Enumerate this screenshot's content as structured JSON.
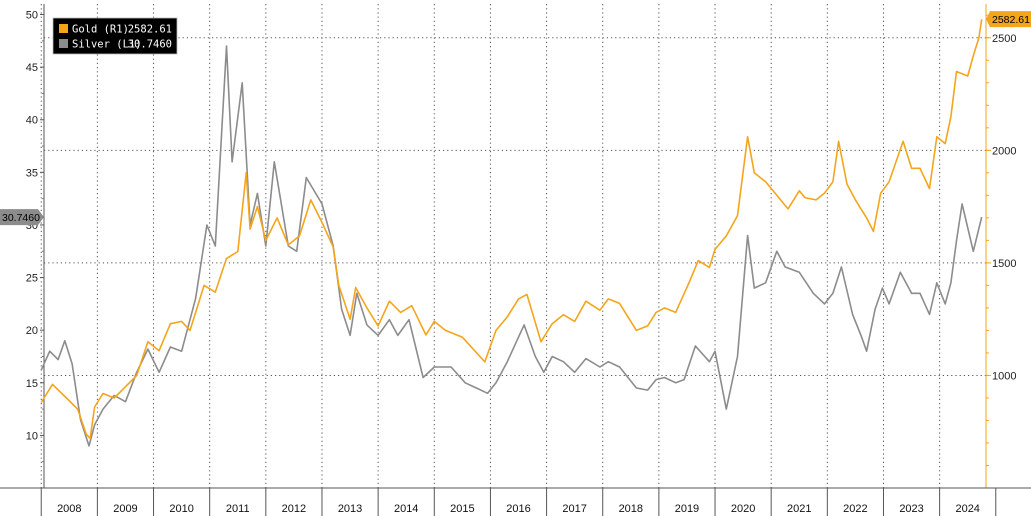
{
  "chart_data": {
    "type": "line",
    "title": "",
    "xlabel": "",
    "x_tick_labels": [
      "2008",
      "2009",
      "2010",
      "2011",
      "2012",
      "2013",
      "2014",
      "2015",
      "2016",
      "2017",
      "2018",
      "2019",
      "2020",
      "2021",
      "2022",
      "2023",
      "2024"
    ],
    "xlim": [
      2007.8,
      2024.9
    ],
    "left_axis": {
      "ticks": [
        "10",
        "15",
        "20",
        "25",
        "30",
        "35",
        "40",
        "45",
        "50"
      ],
      "ylim": [
        5,
        51
      ]
    },
    "right_axis": {
      "ticks": [
        "1000",
        "1500",
        "2000",
        "2500"
      ],
      "ylim": [
        500,
        2650
      ]
    },
    "grid": true,
    "legend": {
      "placement": "top-left"
    },
    "series": [
      {
        "name": "Gold (R1)",
        "axis": "right",
        "color": "#F4A51C",
        "last_value": "2582.61",
        "points": [
          [
            2008.0,
            880
          ],
          [
            2008.2,
            960
          ],
          [
            2008.45,
            900
          ],
          [
            2008.65,
            850
          ],
          [
            2008.8,
            740
          ],
          [
            2008.87,
            720
          ],
          [
            2008.95,
            860
          ],
          [
            2009.1,
            920
          ],
          [
            2009.3,
            900
          ],
          [
            2009.5,
            950
          ],
          [
            2009.7,
            1000
          ],
          [
            2009.9,
            1150
          ],
          [
            2010.1,
            1110
          ],
          [
            2010.3,
            1230
          ],
          [
            2010.5,
            1240
          ],
          [
            2010.65,
            1200
          ],
          [
            2010.9,
            1400
          ],
          [
            2011.1,
            1370
          ],
          [
            2011.3,
            1520
          ],
          [
            2011.5,
            1550
          ],
          [
            2011.65,
            1900
          ],
          [
            2011.72,
            1650
          ],
          [
            2011.85,
            1750
          ],
          [
            2012.0,
            1600
          ],
          [
            2012.2,
            1700
          ],
          [
            2012.4,
            1580
          ],
          [
            2012.6,
            1620
          ],
          [
            2012.8,
            1780
          ],
          [
            2013.0,
            1680
          ],
          [
            2013.2,
            1570
          ],
          [
            2013.3,
            1400
          ],
          [
            2013.5,
            1250
          ],
          [
            2013.6,
            1390
          ],
          [
            2013.8,
            1300
          ],
          [
            2014.0,
            1220
          ],
          [
            2014.2,
            1330
          ],
          [
            2014.4,
            1280
          ],
          [
            2014.6,
            1310
          ],
          [
            2014.85,
            1180
          ],
          [
            2015.0,
            1240
          ],
          [
            2015.2,
            1200
          ],
          [
            2015.5,
            1170
          ],
          [
            2015.9,
            1060
          ],
          [
            2016.1,
            1200
          ],
          [
            2016.3,
            1260
          ],
          [
            2016.5,
            1340
          ],
          [
            2016.65,
            1360
          ],
          [
            2016.9,
            1150
          ],
          [
            2017.1,
            1230
          ],
          [
            2017.3,
            1270
          ],
          [
            2017.5,
            1240
          ],
          [
            2017.7,
            1330
          ],
          [
            2017.95,
            1290
          ],
          [
            2018.1,
            1340
          ],
          [
            2018.3,
            1320
          ],
          [
            2018.6,
            1200
          ],
          [
            2018.8,
            1220
          ],
          [
            2018.95,
            1280
          ],
          [
            2019.1,
            1300
          ],
          [
            2019.3,
            1280
          ],
          [
            2019.55,
            1420
          ],
          [
            2019.7,
            1510
          ],
          [
            2019.9,
            1480
          ],
          [
            2020.0,
            1560
          ],
          [
            2020.2,
            1620
          ],
          [
            2020.4,
            1710
          ],
          [
            2020.58,
            2060
          ],
          [
            2020.7,
            1900
          ],
          [
            2020.9,
            1860
          ],
          [
            2021.1,
            1800
          ],
          [
            2021.3,
            1740
          ],
          [
            2021.5,
            1820
          ],
          [
            2021.6,
            1790
          ],
          [
            2021.8,
            1780
          ],
          [
            2021.95,
            1810
          ],
          [
            2022.1,
            1860
          ],
          [
            2022.2,
            2040
          ],
          [
            2022.35,
            1850
          ],
          [
            2022.5,
            1780
          ],
          [
            2022.7,
            1700
          ],
          [
            2022.82,
            1640
          ],
          [
            2022.95,
            1810
          ],
          [
            2023.1,
            1860
          ],
          [
            2023.35,
            2040
          ],
          [
            2023.5,
            1920
          ],
          [
            2023.65,
            1920
          ],
          [
            2023.82,
            1830
          ],
          [
            2023.95,
            2060
          ],
          [
            2024.1,
            2030
          ],
          [
            2024.2,
            2150
          ],
          [
            2024.3,
            2350
          ],
          [
            2024.5,
            2330
          ],
          [
            2024.6,
            2420
          ],
          [
            2024.7,
            2500
          ],
          [
            2024.75,
            2582.61
          ]
        ]
      },
      {
        "name": "Silver (L1)",
        "axis": "left",
        "color": "#8C8C8C",
        "last_value": "30.7460",
        "points": [
          [
            2008.0,
            16.2
          ],
          [
            2008.15,
            18.0
          ],
          [
            2008.3,
            17.2
          ],
          [
            2008.42,
            19.0
          ],
          [
            2008.55,
            16.8
          ],
          [
            2008.7,
            11.5
          ],
          [
            2008.85,
            9.0
          ],
          [
            2008.95,
            11.0
          ],
          [
            2009.1,
            12.5
          ],
          [
            2009.3,
            13.8
          ],
          [
            2009.5,
            13.2
          ],
          [
            2009.7,
            16.0
          ],
          [
            2009.9,
            18.2
          ],
          [
            2010.1,
            16.0
          ],
          [
            2010.3,
            18.4
          ],
          [
            2010.5,
            18.0
          ],
          [
            2010.75,
            23.0
          ],
          [
            2010.95,
            30.0
          ],
          [
            2011.1,
            28.0
          ],
          [
            2011.3,
            47.0
          ],
          [
            2011.4,
            36.0
          ],
          [
            2011.58,
            43.5
          ],
          [
            2011.72,
            30.0
          ],
          [
            2011.85,
            33.0
          ],
          [
            2012.0,
            28.0
          ],
          [
            2012.15,
            36.0
          ],
          [
            2012.4,
            28.0
          ],
          [
            2012.55,
            27.5
          ],
          [
            2012.72,
            34.5
          ],
          [
            2013.0,
            32.0
          ],
          [
            2013.2,
            28.0
          ],
          [
            2013.35,
            22.0
          ],
          [
            2013.5,
            19.5
          ],
          [
            2013.62,
            23.5
          ],
          [
            2013.8,
            20.5
          ],
          [
            2014.0,
            19.5
          ],
          [
            2014.2,
            21.0
          ],
          [
            2014.35,
            19.5
          ],
          [
            2014.55,
            21.0
          ],
          [
            2014.8,
            15.5
          ],
          [
            2015.0,
            16.5
          ],
          [
            2015.3,
            16.5
          ],
          [
            2015.55,
            15.0
          ],
          [
            2015.75,
            14.5
          ],
          [
            2015.95,
            14.0
          ],
          [
            2016.1,
            15.0
          ],
          [
            2016.3,
            17.0
          ],
          [
            2016.6,
            20.5
          ],
          [
            2016.8,
            17.5
          ],
          [
            2016.95,
            16.0
          ],
          [
            2017.1,
            17.5
          ],
          [
            2017.3,
            17.0
          ],
          [
            2017.5,
            16.0
          ],
          [
            2017.7,
            17.3
          ],
          [
            2017.95,
            16.5
          ],
          [
            2018.1,
            17.0
          ],
          [
            2018.3,
            16.5
          ],
          [
            2018.6,
            14.5
          ],
          [
            2018.8,
            14.3
          ],
          [
            2018.95,
            15.3
          ],
          [
            2019.1,
            15.5
          ],
          [
            2019.3,
            15.0
          ],
          [
            2019.45,
            15.3
          ],
          [
            2019.65,
            18.5
          ],
          [
            2019.9,
            17.0
          ],
          [
            2020.0,
            18.0
          ],
          [
            2020.2,
            12.5
          ],
          [
            2020.4,
            17.5
          ],
          [
            2020.58,
            29.0
          ],
          [
            2020.7,
            24.0
          ],
          [
            2020.9,
            24.5
          ],
          [
            2021.1,
            27.5
          ],
          [
            2021.25,
            26.0
          ],
          [
            2021.5,
            25.5
          ],
          [
            2021.75,
            23.5
          ],
          [
            2021.95,
            22.5
          ],
          [
            2022.1,
            23.5
          ],
          [
            2022.25,
            26.0
          ],
          [
            2022.45,
            21.5
          ],
          [
            2022.6,
            19.5
          ],
          [
            2022.7,
            18.0
          ],
          [
            2022.85,
            22.0
          ],
          [
            2022.98,
            24.0
          ],
          [
            2023.1,
            22.5
          ],
          [
            2023.3,
            25.5
          ],
          [
            2023.5,
            23.5
          ],
          [
            2023.65,
            23.5
          ],
          [
            2023.82,
            21.5
          ],
          [
            2023.95,
            24.5
          ],
          [
            2024.1,
            22.5
          ],
          [
            2024.2,
            24.5
          ],
          [
            2024.3,
            28.5
          ],
          [
            2024.4,
            32.0
          ],
          [
            2024.6,
            27.5
          ],
          [
            2024.75,
            30.746
          ]
        ]
      }
    ]
  }
}
